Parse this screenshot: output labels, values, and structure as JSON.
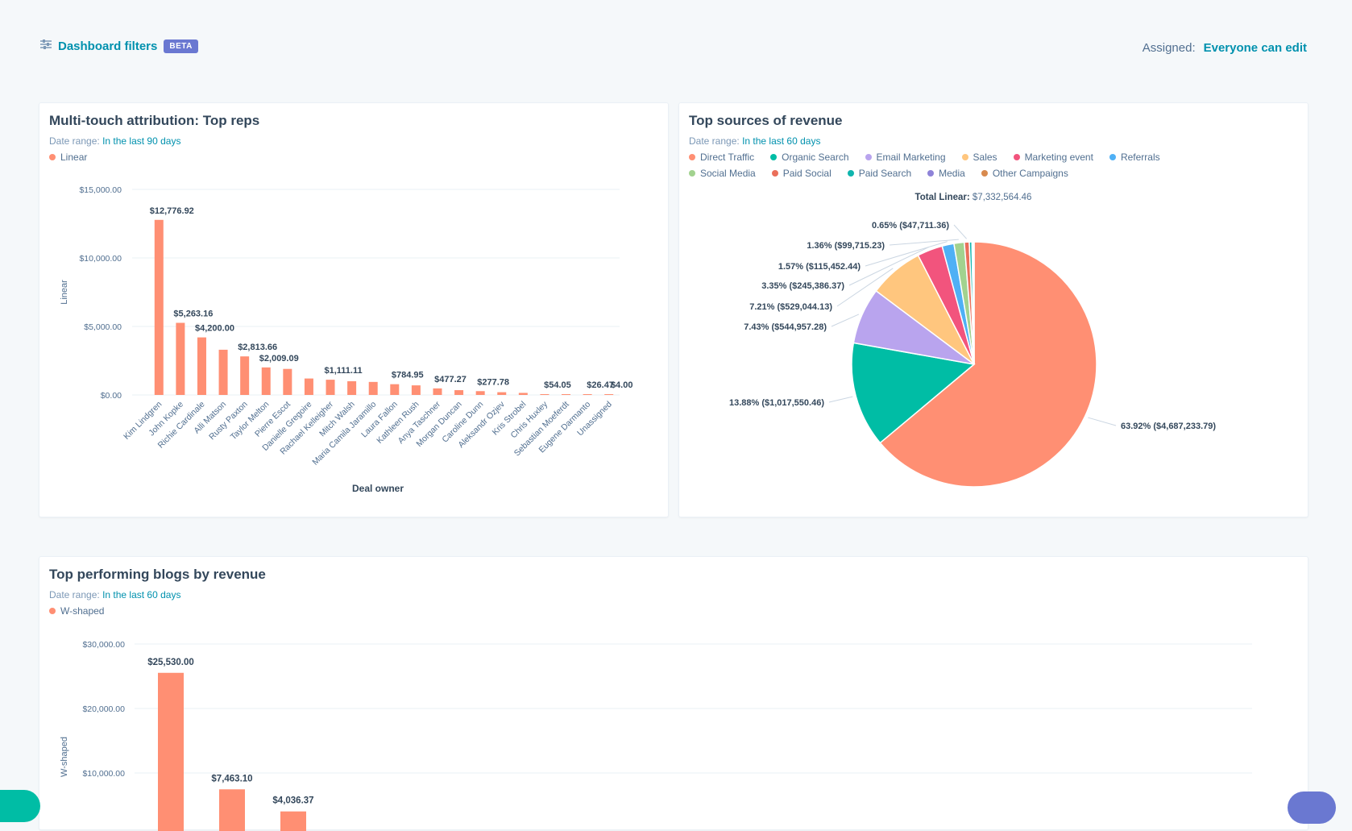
{
  "header": {
    "filters_icon": "sliders-icon",
    "filters_label": "Dashboard filters",
    "beta_badge": "BETA",
    "assigned_label": "Assigned:",
    "assigned_value": "Everyone can edit"
  },
  "colors": {
    "accent": "#0091ae",
    "bar": "#ff8f73"
  },
  "cards": {
    "reps": {
      "title": "Multi-touch attribution: Top reps",
      "date_label": "Date range:",
      "date_value": "In the last 90 days",
      "legend": "Linear"
    },
    "sources": {
      "title": "Top sources of revenue",
      "date_label": "Date range:",
      "date_value": "In the last 60 days",
      "total_label": "Total Linear:",
      "total_value": "$7,332,564.46"
    },
    "blogs": {
      "title": "Top performing blogs by revenue",
      "date_label": "Date range:",
      "date_value": "In the last 60 days",
      "legend": "W-shaped"
    }
  },
  "chart_data": [
    {
      "type": "bar",
      "title": "Multi-touch attribution: Top reps",
      "xlabel": "Deal owner",
      "ylabel": "Linear",
      "ylim": [
        0,
        15000
      ],
      "yticks": [
        "$0.00",
        "$5,000.00",
        "$10,000.00",
        "$15,000.00"
      ],
      "grid": true,
      "legend": "top-left",
      "series": [
        {
          "name": "Linear",
          "color": "#ff8f73"
        }
      ],
      "categories": [
        "Kim Lindgren",
        "John Kopke",
        "Richie Cardinale",
        "Alli Matson",
        "Rusty Paxton",
        "Taylor Melton",
        "Pierre Escot",
        "Danielle Gregoire",
        "Rachael Kelleigher",
        "Mitch Walsh",
        "Maria Camila Jaramillo",
        "Laura Fallon",
        "Kathleen Rush",
        "Anya Taschner",
        "Morgan Duncan",
        "Caroline Dunn",
        "Aleksandr Ozjev",
        "Kris Strobel",
        "Chris Huxley",
        "Sebastian Moeferdt",
        "Eugene Darmanto",
        "Unassigned"
      ],
      "values": [
        12776.92,
        5263.16,
        4200.0,
        3300,
        2813.66,
        2009.09,
        1900,
        1200,
        1111.11,
        1000,
        950,
        784.95,
        700,
        477.27,
        350,
        277.78,
        200,
        150,
        54.05,
        40,
        26.47,
        4.0
      ],
      "data_labels": [
        "$12,776.92",
        "$5,263.16",
        "$4,200.00",
        "",
        "$2,813.66",
        "$2,009.09",
        "",
        "",
        "$1,111.11",
        "",
        "",
        "$784.95",
        "",
        "$477.27",
        "",
        "$277.78",
        "",
        "",
        "$54.05",
        "",
        "$26.47",
        "$4.00"
      ]
    },
    {
      "type": "pie",
      "title": "Top sources of revenue",
      "legend": "top",
      "total": "Total Linear: $7,332,564.46",
      "categories": [
        "Direct Traffic",
        "Organic Search",
        "Email Marketing",
        "Sales",
        "Marketing event",
        "Referrals",
        "Social Media",
        "Paid Social",
        "Paid Search",
        "Media",
        "Other Campaigns"
      ],
      "colors": [
        "#ff8f73",
        "#00bda5",
        "#b9a4ee",
        "#ffc67e",
        "#f2547d",
        "#4fb0f5",
        "#a2d28f",
        "#ea6f5a",
        "#0fb5ae",
        "#8e83d8",
        "#d88a4e"
      ],
      "values": [
        63.92,
        13.88,
        7.43,
        7.21,
        3.35,
        1.57,
        1.36,
        0.65,
        0.35,
        0.15,
        0.13
      ],
      "slice_labels": [
        "63.92% ($4,687,233.79)",
        "13.88% ($1,017,550.46)",
        "7.43% ($544,957.28)",
        "7.21% ($529,044.13)",
        "3.35% ($245,386.37)",
        "1.57% ($115,452.44)",
        "1.36% ($99,715.23)",
        "0.65% ($47,711.36)",
        "",
        "",
        ""
      ]
    },
    {
      "type": "bar",
      "title": "Top performing blogs by revenue",
      "ylabel": "W-shaped",
      "ylim": [
        0,
        30000
      ],
      "yticks": [
        "$10,000.00",
        "$20,000.00",
        "$30,000.00"
      ],
      "grid": true,
      "legend": "top-left",
      "series": [
        {
          "name": "W-shaped",
          "color": "#ff8f73"
        }
      ],
      "values": [
        25530.0,
        7463.1,
        4036.37
      ],
      "data_labels": [
        "$25,530.00",
        "$7,463.10",
        "$4,036.37"
      ]
    }
  ]
}
